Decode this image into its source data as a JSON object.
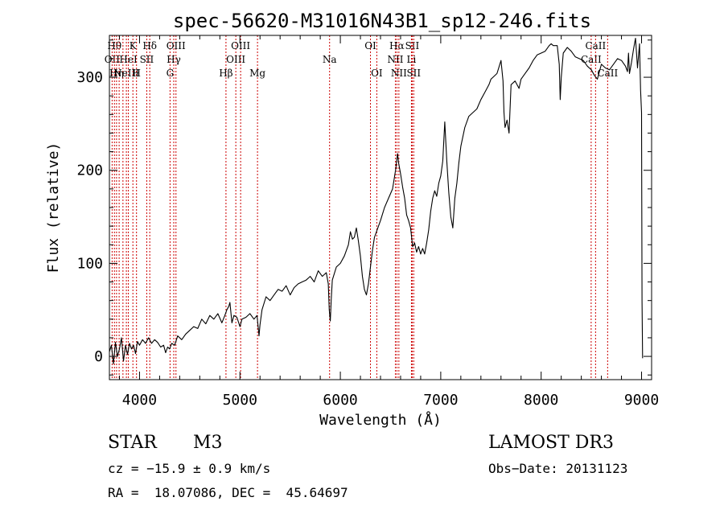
{
  "chart_data": {
    "type": "line",
    "title": "spec-56620-M31016N43B1_sp12-246.fits",
    "xlabel": "Wavelength (Å)",
    "ylabel": "Flux (relative)",
    "xlim": [
      3700,
      9100
    ],
    "ylim": [
      -25,
      345
    ],
    "xticks": [
      4000,
      5000,
      6000,
      7000,
      8000,
      9000
    ],
    "yticks": [
      0,
      100,
      200,
      300
    ],
    "grid": false,
    "line_color": "#000000",
    "marker_color": "#cc0000",
    "series": [
      {
        "name": "flux",
        "points": [
          [
            3700,
            5
          ],
          [
            3720,
            12
          ],
          [
            3740,
            -8
          ],
          [
            3760,
            15
          ],
          [
            3780,
            0
          ],
          [
            3800,
            8
          ],
          [
            3820,
            20
          ],
          [
            3840,
            -5
          ],
          [
            3860,
            12
          ],
          [
            3880,
            2
          ],
          [
            3900,
            14
          ],
          [
            3920,
            8
          ],
          [
            3940,
            12
          ],
          [
            3960,
            3
          ],
          [
            3980,
            16
          ],
          [
            4000,
            12
          ],
          [
            4030,
            18
          ],
          [
            4060,
            14
          ],
          [
            4090,
            20
          ],
          [
            4120,
            14
          ],
          [
            4150,
            18
          ],
          [
            4180,
            15
          ],
          [
            4210,
            10
          ],
          [
            4240,
            12
          ],
          [
            4260,
            4
          ],
          [
            4280,
            10
          ],
          [
            4300,
            8
          ],
          [
            4320,
            14
          ],
          [
            4350,
            12
          ],
          [
            4380,
            22
          ],
          [
            4420,
            18
          ],
          [
            4460,
            24
          ],
          [
            4500,
            28
          ],
          [
            4540,
            32
          ],
          [
            4580,
            30
          ],
          [
            4620,
            40
          ],
          [
            4660,
            35
          ],
          [
            4700,
            44
          ],
          [
            4740,
            40
          ],
          [
            4780,
            46
          ],
          [
            4820,
            36
          ],
          [
            4850,
            44
          ],
          [
            4870,
            50
          ],
          [
            4890,
            54
          ],
          [
            4900,
            58
          ],
          [
            4920,
            36
          ],
          [
            4940,
            44
          ],
          [
            4970,
            42
          ],
          [
            5000,
            32
          ],
          [
            5020,
            40
          ],
          [
            5060,
            42
          ],
          [
            5100,
            46
          ],
          [
            5140,
            40
          ],
          [
            5170,
            44
          ],
          [
            5190,
            22
          ],
          [
            5200,
            34
          ],
          [
            5220,
            50
          ],
          [
            5260,
            64
          ],
          [
            5300,
            60
          ],
          [
            5340,
            66
          ],
          [
            5380,
            72
          ],
          [
            5420,
            70
          ],
          [
            5460,
            76
          ],
          [
            5500,
            66
          ],
          [
            5540,
            74
          ],
          [
            5580,
            78
          ],
          [
            5620,
            80
          ],
          [
            5660,
            82
          ],
          [
            5700,
            86
          ],
          [
            5740,
            80
          ],
          [
            5780,
            92
          ],
          [
            5820,
            86
          ],
          [
            5860,
            90
          ],
          [
            5880,
            78
          ],
          [
            5890,
            50
          ],
          [
            5900,
            38
          ],
          [
            5910,
            62
          ],
          [
            5920,
            82
          ],
          [
            5960,
            96
          ],
          [
            6000,
            100
          ],
          [
            6040,
            108
          ],
          [
            6080,
            120
          ],
          [
            6100,
            134
          ],
          [
            6120,
            126
          ],
          [
            6140,
            128
          ],
          [
            6160,
            138
          ],
          [
            6180,
            124
          ],
          [
            6200,
            108
          ],
          [
            6220,
            86
          ],
          [
            6240,
            72
          ],
          [
            6260,
            66
          ],
          [
            6280,
            78
          ],
          [
            6300,
            96
          ],
          [
            6320,
            114
          ],
          [
            6340,
            128
          ],
          [
            6360,
            134
          ],
          [
            6400,
            146
          ],
          [
            6440,
            160
          ],
          [
            6480,
            170
          ],
          [
            6520,
            180
          ],
          [
            6550,
            200
          ],
          [
            6570,
            218
          ],
          [
            6580,
            208
          ],
          [
            6600,
            196
          ],
          [
            6620,
            182
          ],
          [
            6640,
            170
          ],
          [
            6660,
            152
          ],
          [
            6680,
            146
          ],
          [
            6700,
            138
          ],
          [
            6710,
            128
          ],
          [
            6720,
            118
          ],
          [
            6740,
            122
          ],
          [
            6760,
            112
          ],
          [
            6780,
            118
          ],
          [
            6800,
            110
          ],
          [
            6820,
            116
          ],
          [
            6840,
            110
          ],
          [
            6860,
            122
          ],
          [
            6880,
            136
          ],
          [
            6900,
            156
          ],
          [
            6920,
            170
          ],
          [
            6940,
            178
          ],
          [
            6960,
            172
          ],
          [
            6980,
            186
          ],
          [
            7000,
            194
          ],
          [
            7020,
            210
          ],
          [
            7040,
            252
          ],
          [
            7060,
            210
          ],
          [
            7080,
            176
          ],
          [
            7100,
            150
          ],
          [
            7120,
            138
          ],
          [
            7140,
            170
          ],
          [
            7160,
            186
          ],
          [
            7180,
            208
          ],
          [
            7200,
            226
          ],
          [
            7240,
            246
          ],
          [
            7280,
            258
          ],
          [
            7320,
            262
          ],
          [
            7360,
            266
          ],
          [
            7400,
            276
          ],
          [
            7440,
            284
          ],
          [
            7480,
            292
          ],
          [
            7500,
            298
          ],
          [
            7520,
            300
          ],
          [
            7560,
            304
          ],
          [
            7600,
            318
          ],
          [
            7620,
            296
          ],
          [
            7630,
            262
          ],
          [
            7640,
            246
          ],
          [
            7660,
            254
          ],
          [
            7680,
            240
          ],
          [
            7700,
            292
          ],
          [
            7740,
            296
          ],
          [
            7780,
            288
          ],
          [
            7800,
            298
          ],
          [
            7840,
            304
          ],
          [
            7880,
            310
          ],
          [
            7920,
            318
          ],
          [
            7960,
            324
          ],
          [
            8000,
            326
          ],
          [
            8040,
            328
          ],
          [
            8080,
            334
          ],
          [
            8100,
            336
          ],
          [
            8120,
            334
          ],
          [
            8160,
            334
          ],
          [
            8180,
            314
          ],
          [
            8190,
            276
          ],
          [
            8200,
            300
          ],
          [
            8220,
            326
          ],
          [
            8260,
            332
          ],
          [
            8300,
            328
          ],
          [
            8340,
            322
          ],
          [
            8380,
            320
          ],
          [
            8420,
            318
          ],
          [
            8460,
            312
          ],
          [
            8500,
            308
          ],
          [
            8530,
            302
          ],
          [
            8560,
            298
          ],
          [
            8600,
            314
          ],
          [
            8640,
            310
          ],
          [
            8680,
            308
          ],
          [
            8720,
            314
          ],
          [
            8760,
            320
          ],
          [
            8800,
            318
          ],
          [
            8840,
            312
          ],
          [
            8860,
            306
          ],
          [
            8870,
            326
          ],
          [
            8880,
            304
          ],
          [
            8900,
            316
          ],
          [
            8920,
            330
          ],
          [
            8940,
            342
          ],
          [
            8960,
            310
          ],
          [
            8980,
            336
          ],
          [
            8990,
            286
          ],
          [
            9000,
            262
          ],
          [
            9005,
            60
          ],
          [
            9010,
            -2
          ]
        ]
      }
    ],
    "lines": [
      {
        "wavelength": 3727,
        "labels": [
          "OII"
        ],
        "rows": [
          2
        ]
      },
      {
        "wavelength": 3750,
        "labels": [
          "Hθ"
        ],
        "rows": [
          1
        ]
      },
      {
        "wavelength": 3771,
        "labels": [
          "Hη"
        ],
        "rows": [
          3
        ]
      },
      {
        "wavelength": 3797,
        "labels": [],
        "rows": []
      },
      {
        "wavelength": 3835,
        "labels": [],
        "rows": []
      },
      {
        "wavelength": 3869,
        "labels": [
          "NeIII"
        ],
        "rows": [
          3
        ]
      },
      {
        "wavelength": 3889,
        "labels": [
          "HeI"
        ],
        "rows": [
          2
        ]
      },
      {
        "wavelength": 3934,
        "labels": [
          "K"
        ],
        "rows": [
          1
        ]
      },
      {
        "wavelength": 3970,
        "labels": [
          "H"
        ],
        "rows": [
          3
        ]
      },
      {
        "wavelength": 4072,
        "labels": [
          "SII"
        ],
        "rows": [
          2
        ]
      },
      {
        "wavelength": 4102,
        "labels": [
          "Hδ"
        ],
        "rows": [
          1
        ]
      },
      {
        "wavelength": 4304,
        "labels": [
          "G"
        ],
        "rows": [
          3
        ]
      },
      {
        "wavelength": 4341,
        "labels": [
          "Hγ"
        ],
        "rows": [
          2
        ]
      },
      {
        "wavelength": 4363,
        "labels": [
          "OIII"
        ],
        "rows": [
          1
        ]
      },
      {
        "wavelength": 4861,
        "labels": [
          "Hβ"
        ],
        "rows": [
          3
        ]
      },
      {
        "wavelength": 4959,
        "labels": [
          "OIII"
        ],
        "rows": [
          2
        ]
      },
      {
        "wavelength": 5007,
        "labels": [
          "OIII"
        ],
        "rows": [
          1
        ]
      },
      {
        "wavelength": 5175,
        "labels": [
          "Mg"
        ],
        "rows": [
          3
        ]
      },
      {
        "wavelength": 5893,
        "labels": [
          "Na"
        ],
        "rows": [
          2
        ]
      },
      {
        "wavelength": 6300,
        "labels": [
          "OI"
        ],
        "rows": [
          1
        ]
      },
      {
        "wavelength": 6363,
        "labels": [
          "OI"
        ],
        "rows": [
          3
        ]
      },
      {
        "wavelength": 6548,
        "labels": [
          "NII"
        ],
        "rows": [
          2
        ]
      },
      {
        "wavelength": 6563,
        "labels": [
          "Hα"
        ],
        "rows": [
          1
        ]
      },
      {
        "wavelength": 6583,
        "labels": [
          "NII"
        ],
        "rows": [
          3
        ]
      },
      {
        "wavelength": 6708,
        "labels": [
          "Li"
        ],
        "rows": [
          2
        ]
      },
      {
        "wavelength": 6716,
        "labels": [
          "SII"
        ],
        "rows": [
          1
        ]
      },
      {
        "wavelength": 6731,
        "labels": [
          "SII"
        ],
        "rows": [
          3
        ]
      },
      {
        "wavelength": 8498,
        "labels": [
          "CaII"
        ],
        "rows": [
          2
        ]
      },
      {
        "wavelength": 8542,
        "labels": [
          "CaII"
        ],
        "rows": [
          1
        ]
      },
      {
        "wavelength": 8662,
        "labels": [
          "CaII"
        ],
        "rows": [
          3
        ]
      }
    ]
  },
  "info": {
    "class": "STAR",
    "subclass": "M3",
    "survey": "LAMOST DR3",
    "cz": "cz = −15.9 ± 0.9 km/s",
    "obs_date": "Obs−Date: 20131123",
    "coords": "RA =  18.07086, DEC =  45.64697"
  }
}
